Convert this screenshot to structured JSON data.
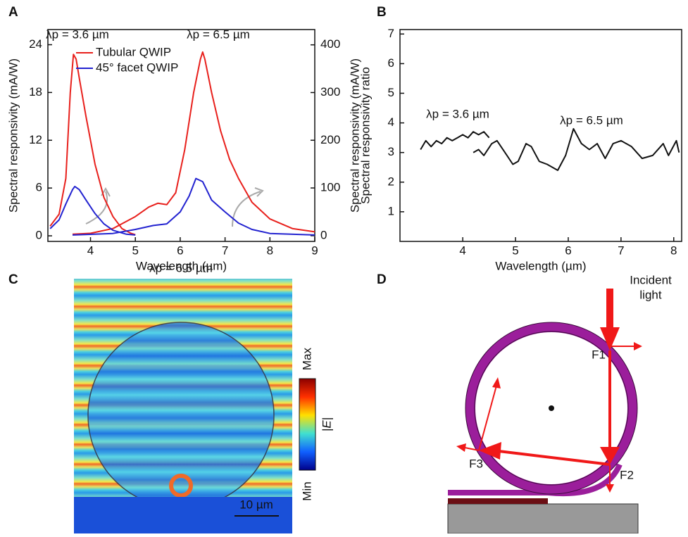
{
  "chart_data": [
    {
      "type": "line",
      "panel": "A",
      "xlabel": "Wavelength (µm)",
      "ylabel": "Spectral responsivity (mA/W)",
      "y2label": "Spectral responsivity (mA/W)",
      "xlim": [
        3.05,
        9
      ],
      "xticks": [
        4,
        5,
        6,
        7,
        8,
        9
      ],
      "ylim": [
        -0.7,
        25.9
      ],
      "yticks": [
        0,
        6,
        12,
        18,
        24
      ],
      "y2lim": [
        -12,
        432
      ],
      "y2ticks": [
        0,
        100,
        200,
        300,
        400
      ],
      "annotations": [
        "λp = 3.6 µm",
        "λp = 6.5 µm"
      ],
      "series": [
        {
          "name": "Tubular QWIP",
          "color": "#e8201c",
          "axis": "y2",
          "x": [
            3.1,
            3.3,
            3.45,
            3.55,
            3.62,
            3.68,
            3.75,
            3.9,
            4.1,
            4.3,
            4.5,
            4.7,
            4.9,
            5.0,
            null,
            3.6,
            4.0,
            4.5,
            5.0,
            5.3,
            5.5,
            5.7,
            5.9,
            6.1,
            6.3,
            6.45,
            6.5,
            6.55,
            6.7,
            6.9,
            7.1,
            7.3,
            7.6,
            8.0,
            8.5,
            9.0
          ],
          "values": [
            20,
            45,
            120,
            300,
            380,
            370,
            330,
            250,
            150,
            80,
            40,
            15,
            5,
            2,
            null,
            3,
            5,
            15,
            40,
            60,
            68,
            65,
            90,
            180,
            300,
            370,
            385,
            370,
            300,
            220,
            160,
            120,
            70,
            35,
            15,
            8
          ]
        },
        {
          "name": "45° facet QWIP",
          "color": "#2323d0",
          "axis": "y",
          "x": [
            3.1,
            3.3,
            3.45,
            3.6,
            3.65,
            3.75,
            3.9,
            4.1,
            4.3,
            4.5,
            4.8,
            5.0,
            null,
            3.6,
            4.5,
            5.0,
            5.4,
            5.7,
            6.0,
            6.2,
            6.35,
            6.5,
            6.7,
            7.0,
            7.3,
            7.6,
            8.0,
            9.0
          ],
          "values": [
            0.9,
            2,
            4,
            5.8,
            6.2,
            5.8,
            4.5,
            2.8,
            1.5,
            0.7,
            0.2,
            0.1,
            null,
            0.1,
            0.3,
            0.8,
            1.3,
            1.5,
            3,
            5,
            7.2,
            6.8,
            4.5,
            3,
            1.6,
            0.8,
            0.3,
            0.1
          ]
        }
      ]
    },
    {
      "type": "line",
      "panel": "B",
      "xlabel": "Wavelength (µm)",
      "ylabel": "Spectral responsivity ratio",
      "xlim": [
        2.81,
        8.15
      ],
      "xticks": [
        4,
        5,
        6,
        7,
        8
      ],
      "ylim": [
        0,
        7.15
      ],
      "yticks": [
        1,
        2,
        3,
        4,
        5,
        6,
        7
      ],
      "annotations": [
        "λp = 3.6 µm",
        "λp = 6.5 µm"
      ],
      "series": [
        {
          "color": "#111111",
          "axis": "y",
          "x": [
            3.2,
            3.3,
            3.4,
            3.5,
            3.6,
            3.7,
            3.8,
            3.9,
            4.0,
            4.1,
            4.2,
            4.3,
            4.4,
            4.5,
            null,
            4.2,
            4.3,
            4.4,
            4.55,
            4.65,
            4.8,
            4.95,
            5.05,
            5.2,
            5.3,
            5.45,
            5.6,
            5.8,
            5.95,
            6.1,
            6.25,
            6.4,
            6.55,
            6.7,
            6.85,
            7.0,
            7.2,
            7.4,
            7.6,
            7.8,
            7.9,
            8.05,
            8.1
          ],
          "values": [
            3.1,
            3.4,
            3.2,
            3.4,
            3.3,
            3.5,
            3.4,
            3.5,
            3.6,
            3.5,
            3.7,
            3.6,
            3.7,
            3.5,
            null,
            3.0,
            3.1,
            2.9,
            3.3,
            3.4,
            3.0,
            2.6,
            2.7,
            3.3,
            3.2,
            2.7,
            2.6,
            2.4,
            2.9,
            3.8,
            3.3,
            3.1,
            3.3,
            2.8,
            3.3,
            3.4,
            3.2,
            2.8,
            2.9,
            3.3,
            2.9,
            3.4,
            3.0
          ]
        }
      ]
    }
  ],
  "field_map": {
    "panel": "C",
    "title": "λp = 6.5 µm",
    "colorbar_max": "Max",
    "colorbar_min": "Min",
    "colorbar_label": "|E|",
    "scale_bar": "10 µm"
  },
  "diagram": {
    "panel": "D",
    "incident_light": [
      "Incident",
      "light"
    ],
    "focus_labels": [
      "F1",
      "F2",
      "F3"
    ]
  }
}
